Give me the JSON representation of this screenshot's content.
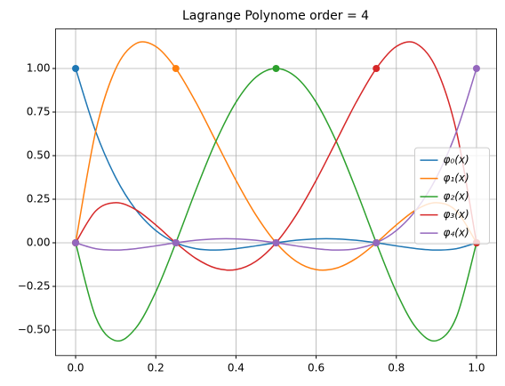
{
  "chart_data": {
    "type": "line",
    "title": "Lagrange Polynome order = 4",
    "x": [
      0,
      0.05,
      0.1,
      0.15,
      0.2,
      0.25,
      0.3,
      0.35,
      0.4,
      0.45,
      0.5,
      0.55,
      0.6,
      0.65,
      0.7,
      0.75,
      0.8,
      0.85,
      0.9,
      0.95,
      1
    ],
    "marker_x": [
      0,
      0.25,
      0.5,
      0.75,
      1
    ],
    "series": [
      {
        "name": "φ₀(x)",
        "color": "#1f77b4",
        "values": [
          1,
          0.6384,
          0.3744,
          0.1904,
          0.0704,
          0,
          -0.0336,
          -0.0416,
          -0.0336,
          -0.0176,
          0,
          0.0144,
          0.0224,
          0.0224,
          0.0144,
          0,
          -0.0176,
          -0.0336,
          -0.0416,
          -0.0336,
          0
        ],
        "marker_values": [
          1,
          0,
          0,
          0,
          0
        ]
      },
      {
        "name": "φ₁(x)",
        "color": "#ff7f0e",
        "values": [
          0,
          0.6384,
          0.9984,
          1.1424,
          1.1264,
          1,
          0.8064,
          0.5824,
          0.3584,
          0.1584,
          0,
          -0.1056,
          -0.1536,
          -0.1456,
          -0.0896,
          0,
          0.1024,
          0.1904,
          0.2304,
          0.1824,
          0
        ],
        "marker_values": [
          0,
          1,
          0,
          0,
          0
        ]
      },
      {
        "name": "φ₂(x)",
        "color": "#2ca02c",
        "values": [
          0,
          -0.4256,
          -0.5616,
          -0.4896,
          -0.2816,
          0,
          0.3024,
          0.5824,
          0.8064,
          0.9504,
          1,
          0.9504,
          0.8064,
          0.5824,
          0.3024,
          0,
          -0.2816,
          -0.4896,
          -0.5616,
          -0.4256,
          0
        ],
        "marker_values": [
          0,
          0,
          1,
          0,
          0
        ]
      },
      {
        "name": "φ₃(x)",
        "color": "#d62728",
        "values": [
          0,
          0.1824,
          0.2304,
          0.1904,
          0.1024,
          0,
          -0.0896,
          -0.1456,
          -0.1536,
          -0.1056,
          0,
          0.1584,
          0.3584,
          0.5824,
          0.8064,
          1,
          1.1264,
          1.1424,
          0.9984,
          0.6384,
          0
        ],
        "marker_values": [
          0,
          0,
          0,
          1,
          0
        ]
      },
      {
        "name": "φ₄(x)",
        "color": "#9467bd",
        "values": [
          0,
          -0.0336,
          -0.0416,
          -0.0336,
          -0.0176,
          0,
          0.0144,
          0.0224,
          0.0224,
          0.0144,
          0,
          -0.0176,
          -0.0336,
          -0.0416,
          -0.0336,
          0,
          0.0704,
          0.1904,
          0.3744,
          0.6384,
          1
        ],
        "marker_values": [
          0,
          0,
          0,
          0,
          1
        ]
      }
    ],
    "xlim": [
      -0.05,
      1.05
    ],
    "ylim": [
      -0.647,
      1.2276
    ],
    "xticks": [
      {
        "value": 0,
        "label": "0.0"
      },
      {
        "value": 0.2,
        "label": "0.2"
      },
      {
        "value": 0.4,
        "label": "0.4"
      },
      {
        "value": 0.6,
        "label": "0.6"
      },
      {
        "value": 0.8,
        "label": "0.8"
      },
      {
        "value": 1,
        "label": "1.0"
      }
    ],
    "yticks": [
      {
        "value": -0.5,
        "label": "−0.50"
      },
      {
        "value": -0.25,
        "label": "−0.25"
      },
      {
        "value": 0,
        "label": "0.00"
      },
      {
        "value": 0.25,
        "label": "0.25"
      },
      {
        "value": 0.5,
        "label": "0.50"
      },
      {
        "value": 0.75,
        "label": "0.75"
      },
      {
        "value": 1,
        "label": "1.00"
      }
    ],
    "grid": true,
    "legend": "right"
  }
}
